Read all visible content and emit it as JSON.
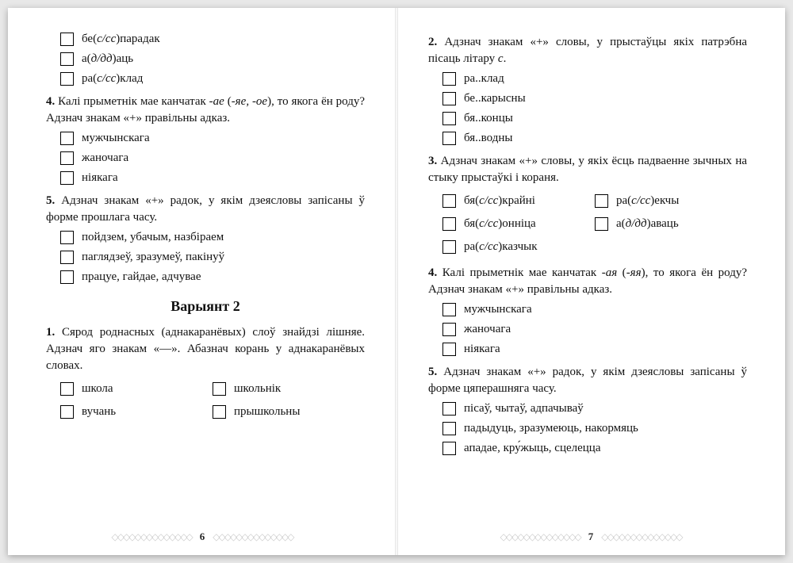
{
  "left_page": {
    "number": "6",
    "top_options": [
      "бе(с/сс)парадак",
      "а(д/дд)аць",
      "ра(с/сс)клад"
    ],
    "q4": {
      "num": "4.",
      "text_parts": [
        "Калі прыметнік мае канчатак ",
        "-ае",
        " (",
        "-яе, -ое",
        "), то якога ён роду? Адзнач знакам «+» правільны адказ."
      ],
      "options": [
        "мужчынскага",
        "жаночага",
        "ніякага"
      ]
    },
    "q5": {
      "num": "5.",
      "text": "Адзнач знакам «+» радок, у якім дзеясловы запісаны ў форме прошлага часу.",
      "options": [
        "пойдзем, убачым, назбіраем",
        "паглядзеў, зразумеў, пакінуў",
        "працуе, гайдае, адчувае"
      ]
    },
    "variant": "Варыянт 2",
    "q1": {
      "num": "1.",
      "text": "Сярод роднасных (аднакаранёвых) слоў знайдзі лішняе. Адзнач яго знакам «—». Абазнач корань у аднакаранёвых словах.",
      "options": [
        "школа",
        "школьнік",
        "вучань",
        "прышкольны"
      ]
    }
  },
  "right_page": {
    "number": "7",
    "q2": {
      "num": "2.",
      "text_parts": [
        "Адзнач знакам «+» словы, у прыстаўцы якіх патрэбна пісаць літару ",
        "с",
        "."
      ],
      "options": [
        "ра..клад",
        "бе..карысны",
        "бя..концы",
        "бя..водны"
      ]
    },
    "q3": {
      "num": "3.",
      "text": "Адзнач знакам «+» словы, у якіх ёсць падваенне зычных на стыку прыстаўкі і кораня.",
      "options": [
        "бя(с/сс)крайні",
        "ра(с/сс)екчы",
        "бя(с/сс)онніца",
        "а(д/дд)аваць",
        "ра(с/сс)казчык"
      ]
    },
    "q4": {
      "num": "4.",
      "text_parts": [
        "Калі прыметнік мае канчатак ",
        "-ая",
        " (",
        "-яя",
        "), то якога ён роду? Адзнач знакам «+» правільны адказ."
      ],
      "options": [
        "мужчынскага",
        "жаночага",
        "ніякага"
      ]
    },
    "q5": {
      "num": "5.",
      "text": "Адзнач знакам «+» радок, у якім дзеясловы запісаны ў форме цяперашняга часу.",
      "options": [
        "пісаў, чытаў, адпачываў",
        "падыдуць, зразумеюць, накормяць",
        "ападае, кру́жыць, сцелецца"
      ]
    }
  }
}
